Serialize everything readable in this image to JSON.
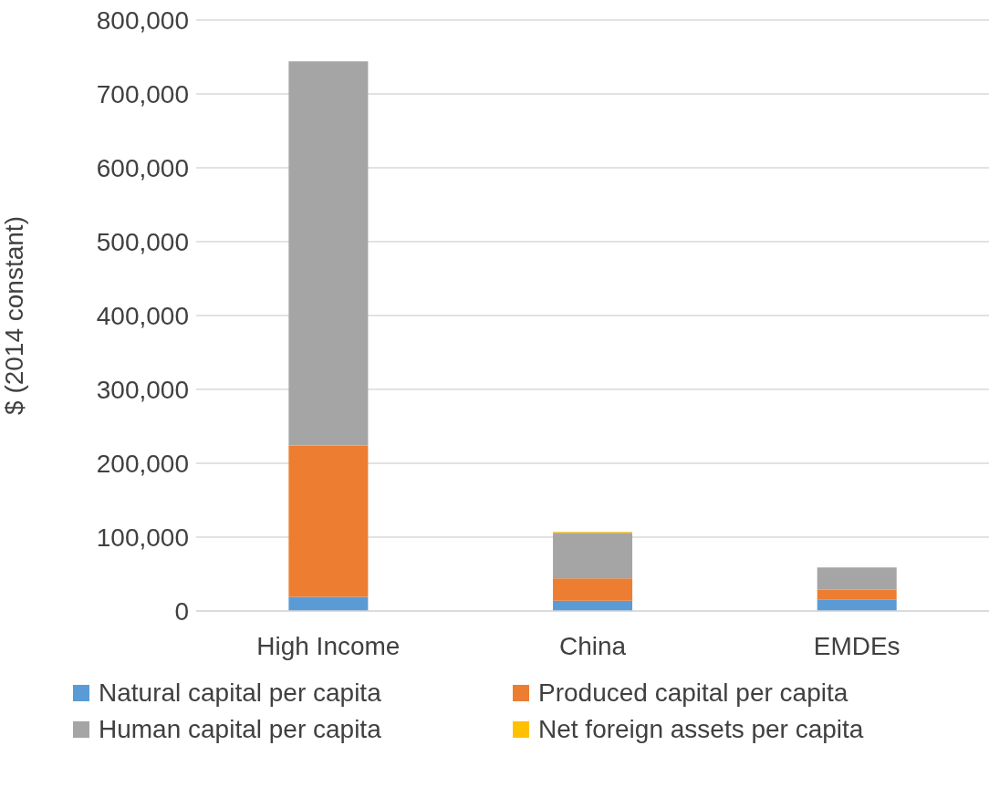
{
  "chart_data": {
    "type": "bar",
    "stacked": true,
    "ylabel": "$ (2014 constant)",
    "categories": [
      "High Income",
      "China",
      "EMDEs"
    ],
    "series": [
      {
        "name": "Natural capital per capita",
        "color": "#5b9bd5",
        "values": [
          19000,
          14000,
          15000
        ]
      },
      {
        "name": "Produced capital per capita",
        "color": "#ed7d31",
        "values": [
          205000,
          30000,
          14000
        ]
      },
      {
        "name": "Human capital per capita",
        "color": "#a5a5a5",
        "values": [
          520000,
          62000,
          30000
        ]
      },
      {
        "name": "Net foreign assets per capita",
        "color": "#ffc000",
        "values": [
          0,
          1000,
          0
        ]
      }
    ],
    "ylim": [
      0,
      800000
    ],
    "yticks": [
      0,
      {
        "value": 100000,
        "label": "100,000"
      },
      {
        "value": 200000,
        "label": "200,000"
      },
      {
        "value": 300000,
        "label": "300,000"
      },
      {
        "value": 400000,
        "label": "400,000"
      },
      {
        "value": 500000,
        "label": "500,000"
      },
      {
        "value": 600000,
        "label": "600,000"
      },
      {
        "value": 700000,
        "label": "700,000"
      },
      {
        "value": 800000,
        "label": "800,000"
      }
    ],
    "grid": "y",
    "legend": "bottom"
  }
}
